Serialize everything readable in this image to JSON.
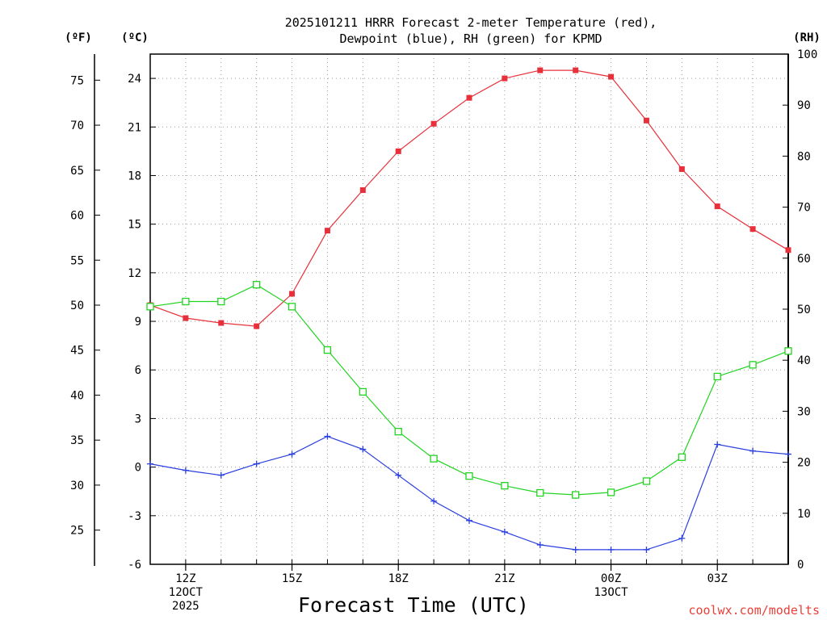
{
  "chart_data": {
    "type": "line",
    "title_line1": "2025101211 HRRR Forecast 2-meter Temperature (red),",
    "title_line2": "Dewpoint (blue), RH (green) for KPMD",
    "xlabel": "Forecast Time (UTC)",
    "credit": "coolwx.com/modelts",
    "units": {
      "fahrenheit": "(ºF)",
      "celsius": "(ºC)",
      "rh": "(RH)"
    },
    "x_hours": [
      11,
      12,
      13,
      14,
      15,
      16,
      17,
      18,
      19,
      20,
      21,
      22,
      23,
      24,
      25,
      26,
      27,
      28,
      29
    ],
    "x_ticks": [
      {
        "hour": 12,
        "lines": [
          "12Z",
          "12OCT",
          "2025"
        ]
      },
      {
        "hour": 15,
        "lines": [
          "15Z"
        ]
      },
      {
        "hour": 18,
        "lines": [
          "18Z"
        ]
      },
      {
        "hour": 21,
        "lines": [
          "21Z"
        ]
      },
      {
        "hour": 24,
        "lines": [
          "00Z",
          "13OCT"
        ]
      },
      {
        "hour": 27,
        "lines": [
          "03Z"
        ]
      }
    ],
    "celsius_axis": {
      "min": -6,
      "max": 25.5,
      "ticks": [
        "24",
        "21",
        "18",
        "15",
        "12",
        "9",
        "6",
        "3",
        "0",
        "-3",
        "-6"
      ]
    },
    "fahrenheit_axis": {
      "ticks": [
        "75",
        "70",
        "65",
        "60",
        "55",
        "50",
        "45",
        "40",
        "35",
        "30",
        "25"
      ]
    },
    "rh_axis": {
      "min": 0,
      "max": 100,
      "ticks": [
        "100",
        "90",
        "80",
        "70",
        "60",
        "50",
        "40",
        "30",
        "20",
        "10",
        "0"
      ]
    },
    "series": [
      {
        "name": "Temperature",
        "axis": "celsius",
        "color": "#e8303a",
        "marker": "filled-square",
        "values": [
          10.0,
          9.2,
          8.9,
          8.7,
          10.7,
          14.6,
          17.1,
          19.5,
          21.2,
          22.8,
          24.0,
          24.5,
          24.5,
          24.1,
          21.4,
          18.4,
          16.1,
          14.7,
          13.4
        ]
      },
      {
        "name": "Dewpoint",
        "axis": "celsius",
        "color": "#2a3fe0",
        "marker": "plus",
        "values": [
          0.2,
          -0.2,
          -0.5,
          0.2,
          0.8,
          1.9,
          1.1,
          -0.5,
          -2.1,
          -3.3,
          -4.0,
          -4.8,
          -5.1,
          -5.1,
          -5.1,
          -4.4,
          1.4,
          1.0,
          0.8
        ]
      },
      {
        "name": "RH",
        "axis": "rh",
        "color": "#22d422",
        "marker": "open-square",
        "values": [
          50.5,
          51.5,
          51.5,
          54.8,
          50.5,
          42.0,
          33.8,
          26.0,
          20.7,
          17.3,
          15.4,
          14.0,
          13.6,
          14.1,
          16.3,
          21.0,
          36.8,
          39.1,
          41.8
        ]
      }
    ]
  }
}
